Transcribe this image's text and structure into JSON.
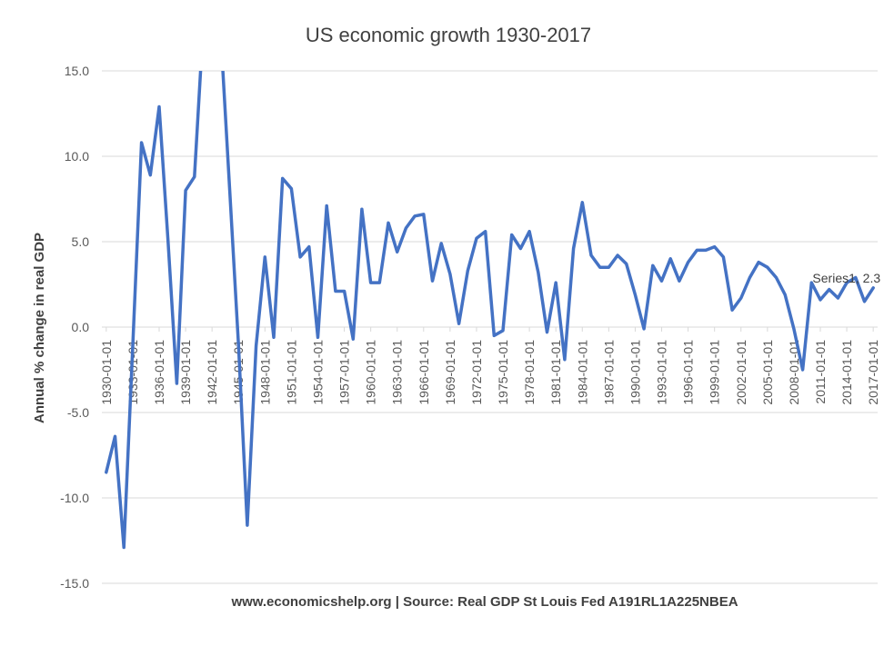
{
  "chart_data": {
    "type": "line",
    "title": "US economic growth 1930-2017",
    "ylabel": "Annual % change in real GDP",
    "xlabel": "",
    "source_note": "www.economicshelp.org | Source: Real GDP St Louis Fed A191RL1A225NBEA",
    "ylim": [
      -15,
      15
    ],
    "yticks": [
      15,
      10,
      5,
      0,
      -5,
      -10,
      -15
    ],
    "ytick_labels": [
      "15.0",
      "10.0",
      "5.0",
      "0.0",
      "-5.0",
      "-10.0",
      "-15.0"
    ],
    "xtick_labels": [
      "1930-01-01",
      "1933-01-01",
      "1936-01-01",
      "1939-01-01",
      "1942-01-01",
      "1945-01-01",
      "1948-01-01",
      "1951-01-01",
      "1954-01-01",
      "1957-01-01",
      "1960-01-01",
      "1963-01-01",
      "1966-01-01",
      "1969-01-01",
      "1972-01-01",
      "1975-01-01",
      "1978-01-01",
      "1981-01-01",
      "1984-01-01",
      "1987-01-01",
      "1990-01-01",
      "1993-01-01",
      "1996-01-01",
      "1999-01-01",
      "2002-01-01",
      "2005-01-01",
      "2008-01-01",
      "2011-01-01",
      "2014-01-01",
      "2017-01-01"
    ],
    "grid": true,
    "series": [
      {
        "name": "Series1",
        "color": "#4472C4",
        "x": [
          "1930-01-01",
          "1931-01-01",
          "1932-01-01",
          "1933-01-01",
          "1934-01-01",
          "1935-01-01",
          "1936-01-01",
          "1937-01-01",
          "1938-01-01",
          "1939-01-01",
          "1940-01-01",
          "1941-01-01",
          "1942-01-01",
          "1943-01-01",
          "1944-01-01",
          "1945-01-01",
          "1946-01-01",
          "1947-01-01",
          "1948-01-01",
          "1949-01-01",
          "1950-01-01",
          "1951-01-01",
          "1952-01-01",
          "1953-01-01",
          "1954-01-01",
          "1955-01-01",
          "1956-01-01",
          "1957-01-01",
          "1958-01-01",
          "1959-01-01",
          "1960-01-01",
          "1961-01-01",
          "1962-01-01",
          "1963-01-01",
          "1964-01-01",
          "1965-01-01",
          "1966-01-01",
          "1967-01-01",
          "1968-01-01",
          "1969-01-01",
          "1970-01-01",
          "1971-01-01",
          "1972-01-01",
          "1973-01-01",
          "1974-01-01",
          "1975-01-01",
          "1976-01-01",
          "1977-01-01",
          "1978-01-01",
          "1979-01-01",
          "1980-01-01",
          "1981-01-01",
          "1982-01-01",
          "1983-01-01",
          "1984-01-01",
          "1985-01-01",
          "1986-01-01",
          "1987-01-01",
          "1988-01-01",
          "1989-01-01",
          "1990-01-01",
          "1991-01-01",
          "1992-01-01",
          "1993-01-01",
          "1994-01-01",
          "1995-01-01",
          "1996-01-01",
          "1997-01-01",
          "1998-01-01",
          "1999-01-01",
          "2000-01-01",
          "2001-01-01",
          "2002-01-01",
          "2003-01-01",
          "2004-01-01",
          "2005-01-01",
          "2006-01-01",
          "2007-01-01",
          "2008-01-01",
          "2009-01-01",
          "2010-01-01",
          "2011-01-01",
          "2012-01-01",
          "2013-01-01",
          "2014-01-01",
          "2015-01-01",
          "2016-01-01",
          "2017-01-01"
        ],
        "values": [
          -8.5,
          -6.4,
          -12.9,
          -1.2,
          10.8,
          8.9,
          12.9,
          5.1,
          -3.3,
          8.0,
          8.8,
          17.7,
          18.9,
          17.0,
          8.0,
          -1.0,
          -11.6,
          -1.1,
          4.1,
          -0.6,
          8.7,
          8.1,
          4.1,
          4.7,
          -0.6,
          7.1,
          2.1,
          2.1,
          -0.7,
          6.9,
          2.6,
          2.6,
          6.1,
          4.4,
          5.8,
          6.5,
          6.6,
          2.7,
          4.9,
          3.1,
          0.2,
          3.3,
          5.2,
          5.6,
          -0.5,
          -0.2,
          5.4,
          4.6,
          5.6,
          3.2,
          -0.3,
          2.6,
          -1.9,
          4.6,
          7.3,
          4.2,
          3.5,
          3.5,
          4.2,
          3.7,
          1.9,
          -0.1,
          3.6,
          2.7,
          4.0,
          2.7,
          3.8,
          4.5,
          4.5,
          4.7,
          4.1,
          1.0,
          1.7,
          2.9,
          3.8,
          3.5,
          2.9,
          1.9,
          -0.1,
          -2.5,
          2.6,
          1.6,
          2.2,
          1.7,
          2.6,
          2.9,
          1.5,
          2.3
        ]
      }
    ],
    "annotations": [
      {
        "text": "Series1, 2.3",
        "x": "2017-01-01",
        "y": 2.3
      }
    ]
  }
}
